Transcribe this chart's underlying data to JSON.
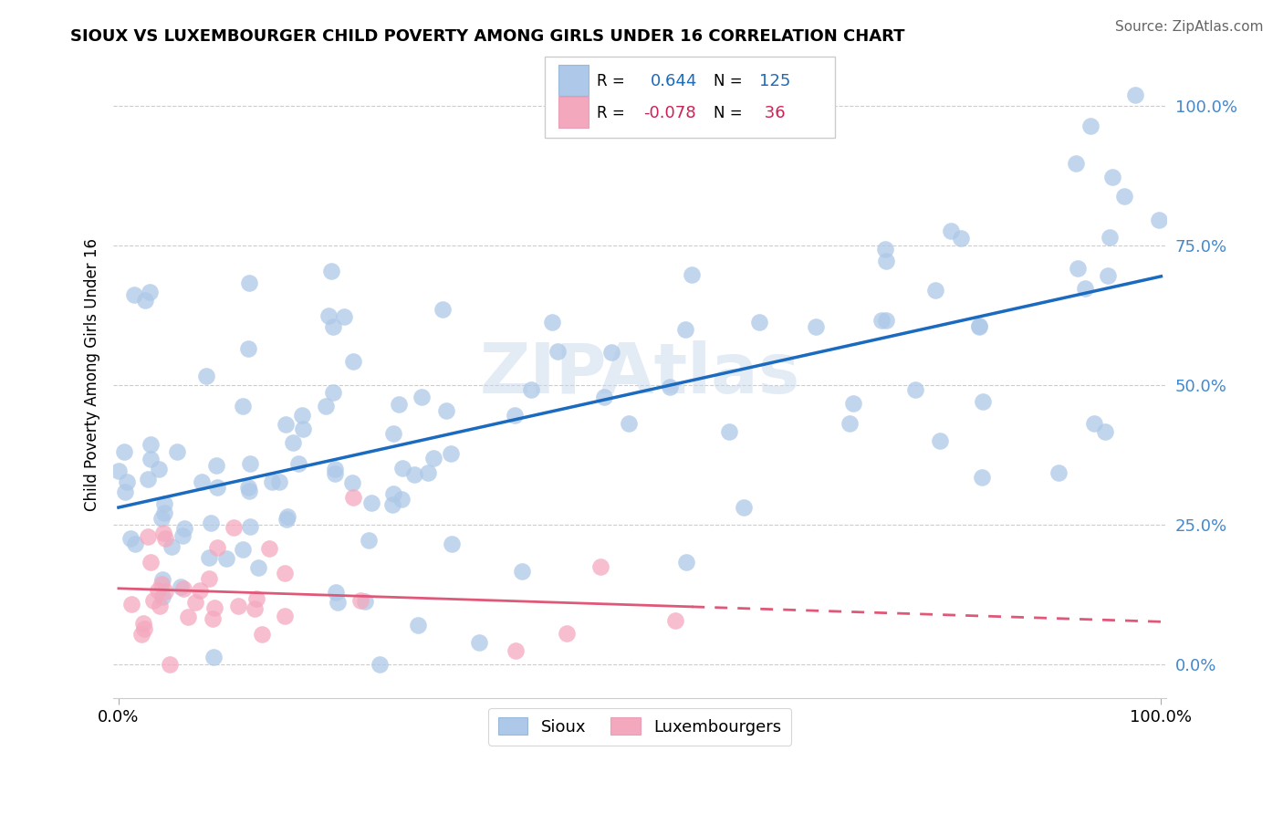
{
  "title": "SIOUX VS LUXEMBOURGER CHILD POVERTY AMONG GIRLS UNDER 16 CORRELATION CHART",
  "source": "Source: ZipAtlas.com",
  "ylabel": "Child Poverty Among Girls Under 16",
  "sioux_color": "#adc8e8",
  "luxembourger_color": "#f4a8be",
  "sioux_line_color": "#1a6abf",
  "luxembourger_line_color": "#e05878",
  "sioux_R": "0.644",
  "sioux_N": "125",
  "luxembourger_R": "-0.078",
  "luxembourger_N": "36",
  "watermark": "ZIPAtlas",
  "background_color": "#ffffff",
  "ytick_color": "#4488cc",
  "legend_R_color": "#1a6abf",
  "legend_R2_color": "#cc2255"
}
